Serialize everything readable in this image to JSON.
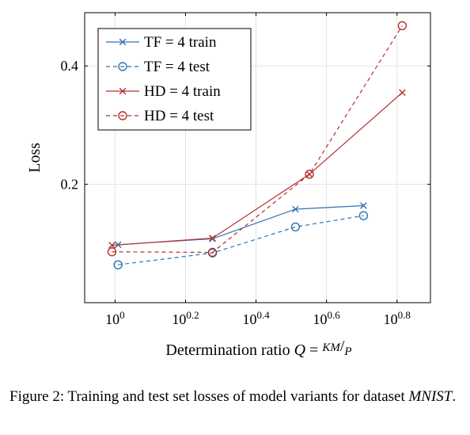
{
  "chart_data": {
    "type": "line",
    "xlabel": "Determination ratio Q = KM/P",
    "ylabel": "Loss",
    "x_scale": "log10",
    "x_ticks": [
      {
        "value": 1,
        "base": "10",
        "exp": "0"
      },
      {
        "value": 1.5849,
        "base": "10",
        "exp": "0.2"
      },
      {
        "value": 2.5119,
        "base": "10",
        "exp": "0.4"
      },
      {
        "value": 3.9811,
        "base": "10",
        "exp": "0.6"
      },
      {
        "value": 6.3096,
        "base": "10",
        "exp": "0.8"
      }
    ],
    "y_ticks": [
      0.2,
      0.4
    ],
    "xlim": [
      0.82,
      7.85
    ],
    "ylim": [
      0.0,
      0.49
    ],
    "grid": true,
    "legend_position": "top-left",
    "series": [
      {
        "name": "TF = 4 train",
        "color": "#2C74B5",
        "style": "solid",
        "marker": "x",
        "x": [
          1.02,
          1.89,
          3.25,
          5.07
        ],
        "y": [
          0.098,
          0.108,
          0.158,
          0.164
        ]
      },
      {
        "name": "TF = 4 test",
        "color": "#2C74B5",
        "style": "dashed",
        "marker": "o",
        "x": [
          1.02,
          1.89,
          3.25,
          5.07
        ],
        "y": [
          0.064,
          0.084,
          0.128,
          0.147
        ]
      },
      {
        "name": "HD = 4 train",
        "color": "#B2312B",
        "style": "solid",
        "marker": "x",
        "x": [
          0.98,
          1.89,
          3.56,
          6.53
        ],
        "y": [
          0.097,
          0.109,
          0.217,
          0.355
        ]
      },
      {
        "name": "HD = 4 test",
        "color": "#B2312B",
        "style": "dashed",
        "marker": "o",
        "x": [
          0.98,
          1.89,
          3.56,
          6.53
        ],
        "y": [
          0.086,
          0.085,
          0.217,
          0.468
        ]
      }
    ]
  },
  "caption": {
    "prefix": "Figure 2: Training and test set losses of model variants for dataset ",
    "dataset": "MNIST",
    "suffix": "."
  }
}
